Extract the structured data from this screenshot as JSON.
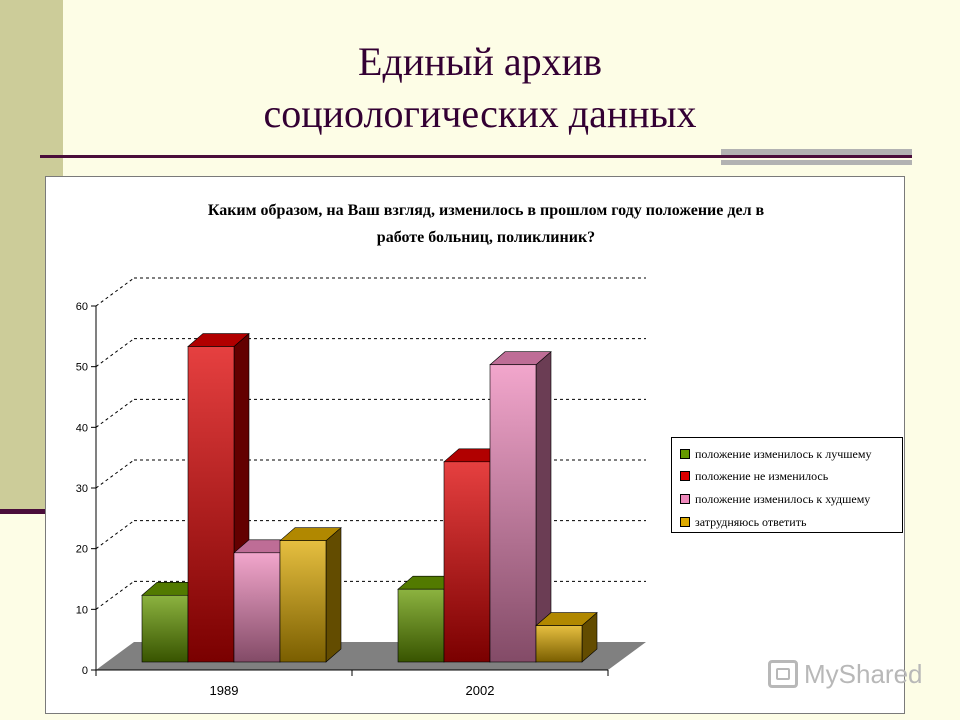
{
  "slide": {
    "title_line1": "Единый архив",
    "title_line2": "социологических данных"
  },
  "watermark": {
    "text": "MyShared",
    "icon": "myshared-logo-icon"
  },
  "colors": {
    "background": "#fdfde6",
    "side_band": "#cccc99",
    "title": "#330033",
    "rule": "#4a0d3a"
  },
  "chart_data": {
    "type": "bar",
    "title_line1": "Каким образом, на Ваш взгляд, изменилось в прошлом году положение дел в",
    "title_line2": "работе больниц, поликлиник?",
    "categories": [
      "1989",
      "2002"
    ],
    "series": [
      {
        "name": "положение изменилось к лучшему",
        "values": [
          11,
          12
        ],
        "color": "#669900"
      },
      {
        "name": "положение не изменилось",
        "values": [
          52,
          33
        ],
        "color": "#dd0000"
      },
      {
        "name": "положение изменилось к худшему",
        "values": [
          18,
          49
        ],
        "color": "#ee88bb"
      },
      {
        "name": "затрудняюсь ответить",
        "values": [
          20,
          6
        ],
        "color": "#ddaa00"
      }
    ],
    "xlabel": "",
    "ylabel": "",
    "ylim": [
      0,
      60
    ],
    "yticks": [
      "0",
      "10",
      "20",
      "30",
      "40",
      "50",
      "60"
    ],
    "grid": true,
    "legend_position": "right",
    "three_d": true
  }
}
